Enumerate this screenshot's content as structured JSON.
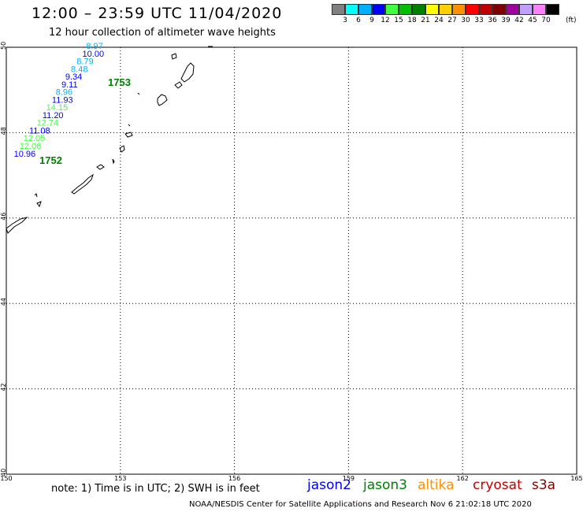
{
  "header": {
    "title": "12:00 – 23:59 UTC 11/04/2020",
    "subtitle": "12 hour collection of altimeter wave heights"
  },
  "scale": {
    "colors": [
      "#808080",
      "#00ffff",
      "#00b0ff",
      "#0000ff",
      "#40ff40",
      "#00c000",
      "#008000",
      "#ffff00",
      "#ffd000",
      "#ff9000",
      "#ff0000",
      "#c00000",
      "#800000",
      "#a000a0",
      "#c0a0ff",
      "#ff80ff",
      "#000000"
    ],
    "labels": [
      "3",
      "6",
      "9",
      "12",
      "15",
      "18",
      "21",
      "24",
      "27",
      "30",
      "33",
      "36",
      "39",
      "42",
      "45",
      "70"
    ],
    "unit": "(ft)"
  },
  "map": {
    "lon_ticks": [
      "150",
      "153",
      "156",
      "159",
      "162",
      "165"
    ],
    "lat_ticks": [
      "50",
      "48",
      "46",
      "44",
      "42",
      "40"
    ],
    "measurements": [
      {
        "value": "8.97",
        "lon": 152.1,
        "lat": 49.96,
        "color": "#00b0ff"
      },
      {
        "value": "10.00",
        "lon": 152.0,
        "lat": 49.78,
        "color": "#0000ff"
      },
      {
        "value": "8.79",
        "lon": 151.85,
        "lat": 49.6,
        "color": "#00b0ff"
      },
      {
        "value": "8.48",
        "lon": 151.7,
        "lat": 49.42,
        "color": "#00b0ff"
      },
      {
        "value": "9.34",
        "lon": 151.55,
        "lat": 49.24,
        "color": "#0000ff"
      },
      {
        "value": "9.11",
        "lon": 151.45,
        "lat": 49.06,
        "color": "#0000ff"
      },
      {
        "value": "8.96",
        "lon": 151.3,
        "lat": 48.88,
        "color": "#00b0ff"
      },
      {
        "value": "11.93",
        "lon": 151.2,
        "lat": 48.7,
        "color": "#0000ff"
      },
      {
        "value": "14.15",
        "lon": 151.05,
        "lat": 48.52,
        "color": "#40ff40"
      },
      {
        "value": "11.20",
        "lon": 150.95,
        "lat": 48.34,
        "color": "#0000ff"
      },
      {
        "value": "12.74",
        "lon": 150.8,
        "lat": 48.16,
        "color": "#40ff40"
      },
      {
        "value": "11.08",
        "lon": 150.6,
        "lat": 47.98,
        "color": "#0000ff"
      },
      {
        "value": "12.05",
        "lon": 150.45,
        "lat": 47.8,
        "color": "#40ff40"
      },
      {
        "value": "12.06",
        "lon": 150.35,
        "lat": 47.62,
        "color": "#40ff40"
      },
      {
        "value": "10.96",
        "lon": 150.2,
        "lat": 47.44,
        "color": "#0000ff"
      }
    ],
    "pass_labels": [
      {
        "text": "1753",
        "color": "#008000"
      },
      {
        "text": "1752",
        "color": "#008000"
      }
    ]
  },
  "footer": {
    "note": "note:  1) Time is in UTC;  2) SWH is in feet",
    "satellites": [
      {
        "name": "jason2",
        "color": "#0000ff"
      },
      {
        "name": "jason3",
        "color": "#008000"
      },
      {
        "name": "altika",
        "color": "#ff9000"
      },
      {
        "name": "cryosat",
        "color": "#c00000"
      },
      {
        "name": "s3a",
        "color": "#800000"
      }
    ],
    "credit": "NOAA/NESDIS Center for Satellite Applications and Research    Nov  6 21:02:18 UTC 2020"
  }
}
